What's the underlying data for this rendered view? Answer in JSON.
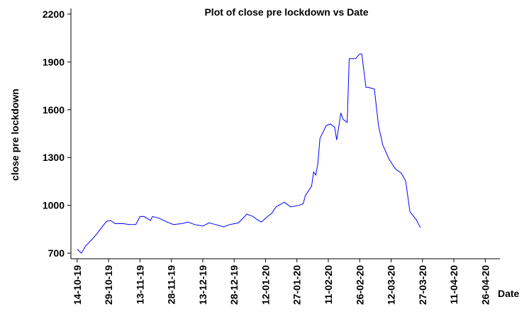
{
  "chart_data": {
    "type": "line",
    "title": "Plot of close pre lockdown vs Date",
    "x_label": "Date",
    "y_label": "close pre lockdown",
    "x": [
      "14-10-19",
      "16-10-19",
      "18-10-19",
      "21-10-19",
      "23-10-19",
      "25-10-19",
      "28-10-19",
      "30-10-19",
      "01-11-19",
      "05-11-19",
      "08-11-19",
      "11-11-19",
      "13-11-19",
      "15-11-19",
      "18-11-19",
      "19-11-19",
      "22-11-19",
      "26-11-19",
      "29-11-19",
      "03-12-19",
      "06-12-19",
      "09-12-19",
      "13-12-19",
      "16-12-19",
      "19-12-19",
      "23-12-19",
      "26-12-19",
      "30-12-19",
      "02-01-20",
      "03-01-20",
      "06-01-20",
      "08-01-20",
      "10-01-20",
      "13-01-20",
      "15-01-20",
      "17-01-20",
      "21-01-20",
      "23-01-20",
      "24-01-20",
      "28-01-20",
      "30-01-20",
      "31-01-20",
      "03-02-20",
      "04-02-20",
      "05-02-20",
      "06-02-20",
      "07-02-20",
      "10-02-20",
      "12-02-20",
      "14-02-20",
      "15-02-20",
      "17-02-20",
      "18-02-20",
      "20-02-20",
      "21-02-20",
      "24-02-20",
      "26-02-20",
      "27-02-20",
      "29-02-20",
      "01-03-20",
      "04-03-20",
      "06-03-20",
      "08-03-20",
      "11-03-20",
      "14-03-20",
      "17-03-20",
      "19-03-20",
      "21-03-20",
      "24-03-20",
      "26-03-20"
    ],
    "series": [
      {
        "name": "close pre lockdown",
        "color": "#0000ff",
        "values": [
          725,
          700,
          745,
          785,
          815,
          850,
          900,
          905,
          885,
          885,
          880,
          880,
          930,
          930,
          905,
          930,
          920,
          895,
          880,
          885,
          895,
          880,
          870,
          890,
          880,
          865,
          880,
          890,
          930,
          945,
          930,
          910,
          895,
          930,
          950,
          990,
          1020,
          1000,
          990,
          1000,
          1010,
          1060,
          1120,
          1210,
          1190,
          1260,
          1420,
          1500,
          1510,
          1490,
          1410,
          1580,
          1540,
          1520,
          1920,
          1920,
          1950,
          1950,
          1740,
          1740,
          1730,
          1500,
          1380,
          1290,
          1230,
          1200,
          1150,
          960,
          910,
          860
        ]
      }
    ],
    "xlim": [
      "11-10-19",
      "03-05-20"
    ],
    "xticks": [
      "14-10-19",
      "29-10-19",
      "13-11-19",
      "28-11-19",
      "13-12-19",
      "28-12-19",
      "12-01-20",
      "27-01-20",
      "11-02-20",
      "26-02-20",
      "12-03-20",
      "27-03-20",
      "11-04-20",
      "26-04-20"
    ],
    "ylim": [
      665,
      2235
    ],
    "yticks": [
      700,
      1000,
      1300,
      1600,
      1900,
      2200
    ],
    "grid": false
  }
}
